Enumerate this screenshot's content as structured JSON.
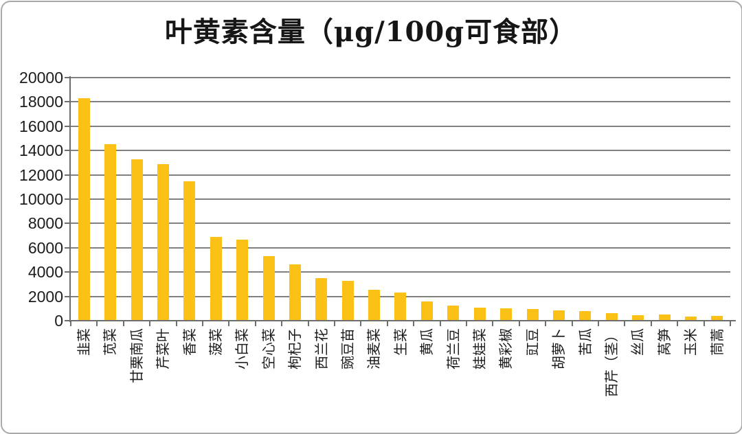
{
  "title": "叶黄素含量（μg/100g可食部）",
  "chart_data": {
    "type": "bar",
    "title": "叶黄素含量（μg/100g可食部）",
    "xlabel": "",
    "ylabel": "",
    "categories": [
      "韭菜",
      "苋菜",
      "甘栗南瓜",
      "芹菜叶",
      "香菜",
      "菠菜",
      "小白菜",
      "空心菜",
      "枸杞子",
      "西兰花",
      "豌豆苗",
      "油麦菜",
      "生菜",
      "黄瓜",
      "荷兰豆",
      "娃娃菜",
      "黄彩椒",
      "豇豆",
      "胡萝卜",
      "苦瓜",
      "西芹（茎）",
      "丝瓜",
      "莴笋",
      "玉米",
      "茼蒿"
    ],
    "values": [
      18300,
      14500,
      13250,
      12900,
      11450,
      6890,
      6650,
      5330,
      4650,
      3520,
      3260,
      2540,
      2300,
      1600,
      1250,
      1060,
      1000,
      980,
      850,
      800,
      620,
      470,
      490,
      360,
      400
    ],
    "ylim": [
      0,
      20000
    ],
    "y_ticks": [
      0,
      2000,
      4000,
      6000,
      8000,
      10000,
      12000,
      14000,
      16000,
      18000,
      20000
    ],
    "grid": true,
    "legend": "none",
    "bar_color": "#fcc117",
    "grid_color": "#808080",
    "axis_color": "#6d6d6d",
    "text_color": "#1c1c1c"
  }
}
